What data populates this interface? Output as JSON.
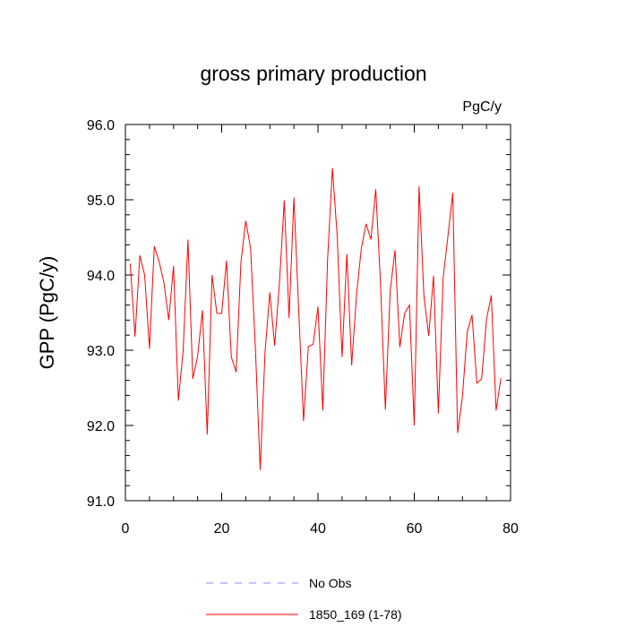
{
  "chart_data": {
    "type": "line",
    "title": "gross primary production",
    "units_label": "PgC/y",
    "ylabel": "GPP  (PgC/y)",
    "xlabel": "",
    "xlim": [
      0,
      80
    ],
    "ylim": [
      91.0,
      96.0
    ],
    "x_ticks": [
      0,
      20,
      40,
      60,
      80
    ],
    "x_tick_labels": [
      "0",
      "20",
      "40",
      "60",
      "80"
    ],
    "y_ticks": [
      91.0,
      92.0,
      93.0,
      94.0,
      95.0,
      96.0
    ],
    "y_tick_labels": [
      "91.0",
      "92.0",
      "93.0",
      "94.0",
      "95.0",
      "96.0"
    ],
    "grid": false,
    "legend_position": "bottom",
    "series": [
      {
        "name": "No Obs",
        "color": "#8888ff",
        "dash": "dashed",
        "x": [],
        "values": []
      },
      {
        "name": "1850_169 (1-78)",
        "color": "#ff0000",
        "dash": "solid",
        "x": [
          1,
          2,
          3,
          4,
          5,
          6,
          7,
          8,
          9,
          10,
          11,
          12,
          13,
          14,
          15,
          16,
          17,
          18,
          19,
          20,
          21,
          22,
          23,
          24,
          25,
          26,
          27,
          28,
          29,
          30,
          31,
          32,
          33,
          34,
          35,
          36,
          37,
          38,
          39,
          40,
          41,
          42,
          43,
          44,
          45,
          46,
          47,
          48,
          49,
          50,
          51,
          52,
          53,
          54,
          55,
          56,
          57,
          58,
          59,
          60,
          61,
          62,
          63,
          64,
          65,
          66,
          67,
          68,
          69,
          70,
          71,
          72,
          73,
          74,
          75,
          76,
          77,
          78
        ],
        "values": [
          94.15,
          93.18,
          94.26,
          94.0,
          93.02,
          94.38,
          94.18,
          93.9,
          93.4,
          94.12,
          92.33,
          93.0,
          94.47,
          92.62,
          92.92,
          93.53,
          91.88,
          94.0,
          93.49,
          93.49,
          94.19,
          92.91,
          92.71,
          94.17,
          94.72,
          94.36,
          93.03,
          91.41,
          92.97,
          93.77,
          93.06,
          93.9,
          94.99,
          93.43,
          95.03,
          93.53,
          92.06,
          93.05,
          93.08,
          93.58,
          92.2,
          94.21,
          95.42,
          94.51,
          92.91,
          94.28,
          92.8,
          93.73,
          94.35,
          94.68,
          94.47,
          95.14,
          93.87,
          92.21,
          93.79,
          94.33,
          93.04,
          93.49,
          93.6,
          92.0,
          95.18,
          93.73,
          93.19,
          93.99,
          92.16,
          93.96,
          94.52,
          95.09,
          91.9,
          92.38,
          93.24,
          93.47,
          92.56,
          92.62,
          93.41,
          93.73,
          92.2,
          92.63
        ]
      }
    ]
  }
}
